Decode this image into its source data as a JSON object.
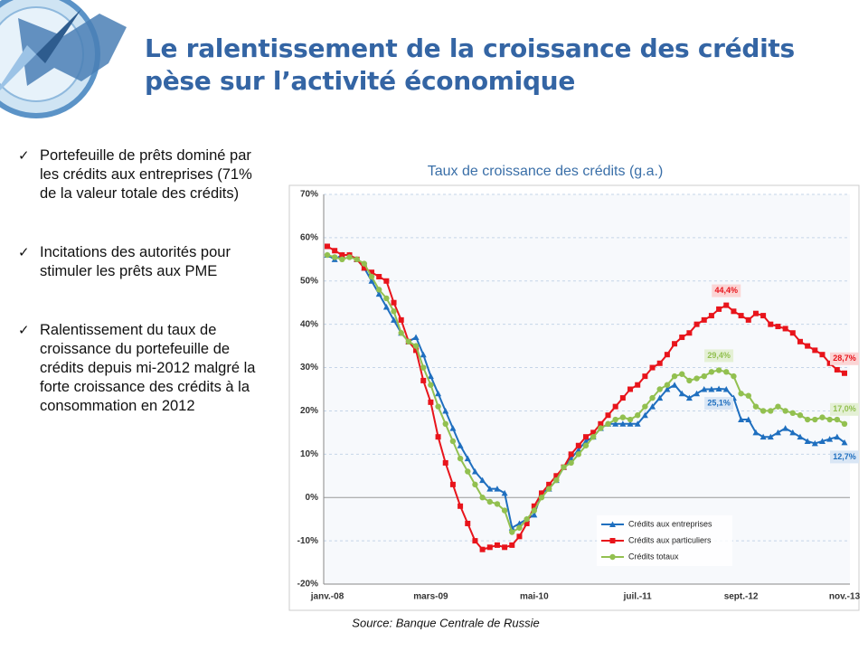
{
  "slide_title": [
    "Le ralentissement de la croissance des crédits",
    "pèse sur l’activité économique"
  ],
  "bullets": [
    "Portefeuille de prêts dominé par les crédits aux entreprises (71% de la valeur totale des crédits)",
    "Incitations des autorités pour stimuler les prêts aux PME",
    "Ralentissement du taux de croissance du portefeuille de crédits depuis mi-2012 malgré la forte croissance des crédits à la consommation en 2012"
  ],
  "chart_data": {
    "type": "line",
    "title": "Taux de croissance des crédits (g.a.)",
    "source": "Source: Banque Centrale de Russie",
    "categories": [
      "janv.-08",
      null,
      null,
      null,
      null,
      null,
      null,
      null,
      null,
      null,
      null,
      null,
      null,
      null,
      "mars-09",
      null,
      null,
      null,
      null,
      null,
      null,
      null,
      null,
      null,
      null,
      null,
      null,
      null,
      "mai-10",
      null,
      null,
      null,
      null,
      null,
      null,
      null,
      null,
      null,
      null,
      null,
      null,
      null,
      "juil.-11",
      null,
      null,
      null,
      null,
      null,
      null,
      null,
      null,
      null,
      null,
      null,
      null,
      null,
      "sept.-12",
      null,
      null,
      null,
      null,
      null,
      null,
      null,
      null,
      null,
      null,
      null,
      null,
      null,
      "nov.-13"
    ],
    "series": [
      {
        "name": "Crédits aux entreprises",
        "color": "#1f6fbf",
        "marker": "triangle",
        "values": [
          56,
          55,
          56,
          56,
          55,
          53,
          50,
          47,
          44,
          41,
          38,
          36,
          37,
          33,
          28,
          24,
          20,
          16,
          12,
          9,
          6,
          4,
          2,
          2,
          1,
          -7,
          -6,
          -5,
          -4,
          1,
          2,
          4,
          7,
          9,
          11,
          13,
          14,
          16,
          17,
          17,
          17,
          17,
          17,
          19,
          21,
          23,
          25,
          26,
          24,
          23,
          24,
          25,
          25,
          25.1,
          25,
          23,
          18,
          18,
          15,
          14,
          14,
          15,
          16,
          15,
          14,
          13,
          12.5,
          13,
          13.5,
          14,
          12.7
        ],
        "value_labels": [
          null,
          null,
          null,
          null,
          null,
          null,
          null,
          null,
          null,
          null,
          null,
          null,
          null,
          null,
          null,
          null,
          null,
          null,
          null,
          null,
          null,
          null,
          null,
          null,
          null,
          null,
          null,
          null,
          null,
          null,
          null,
          null,
          null,
          null,
          null,
          null,
          null,
          null,
          null,
          null,
          null,
          null,
          null,
          null,
          null,
          null,
          null,
          null,
          null,
          null,
          null,
          null,
          null,
          "25,1%",
          null,
          null,
          null,
          null,
          null,
          null,
          null,
          null,
          null,
          null,
          null,
          null,
          null,
          null,
          null,
          null,
          "12,7%"
        ]
      },
      {
        "name": "Crédits aux particuliers",
        "color": "#e8141b",
        "marker": "square",
        "values": [
          58,
          57,
          56,
          56,
          55,
          53,
          52,
          51,
          50,
          45,
          41,
          36,
          34,
          27,
          22,
          14,
          8,
          3,
          -2,
          -6,
          -10,
          -12,
          -11.5,
          -11,
          -11.5,
          -11,
          -9,
          -6,
          -2,
          1,
          3,
          5,
          7,
          10,
          12,
          14,
          15,
          17,
          19,
          21,
          23,
          25,
          26,
          28,
          30,
          31,
          33,
          35.5,
          37,
          38,
          40,
          41,
          42,
          43.5,
          44.4,
          43,
          42,
          41,
          42.5,
          42,
          40,
          39.5,
          39,
          38,
          36,
          35,
          34,
          33,
          31,
          29.5,
          28.7
        ],
        "value_labels": [
          null,
          null,
          null,
          null,
          null,
          null,
          null,
          null,
          null,
          null,
          null,
          null,
          null,
          null,
          null,
          null,
          null,
          null,
          null,
          null,
          null,
          null,
          null,
          null,
          null,
          null,
          null,
          null,
          null,
          null,
          null,
          null,
          null,
          null,
          null,
          null,
          null,
          null,
          null,
          null,
          null,
          null,
          null,
          null,
          null,
          null,
          null,
          null,
          null,
          null,
          null,
          null,
          null,
          null,
          "44,4%",
          null,
          null,
          null,
          null,
          null,
          null,
          null,
          null,
          null,
          null,
          null,
          null,
          null,
          null,
          null,
          "28,7%"
        ]
      },
      {
        "name": "Crédits totaux",
        "color": "#92c050",
        "marker": "circle",
        "values": [
          56,
          55.5,
          55,
          55.5,
          55,
          54,
          51,
          48,
          46,
          43,
          38,
          36,
          35,
          30,
          26,
          21,
          17,
          13,
          9,
          6,
          3,
          0,
          -1,
          -1.5,
          -3,
          -8,
          -7,
          -5,
          -3,
          0,
          2,
          4,
          7,
          8,
          10,
          12,
          14,
          16,
          17,
          18,
          18.5,
          18,
          19,
          21,
          23,
          25,
          26,
          28,
          28.5,
          27,
          27.5,
          28,
          29,
          29.4,
          29,
          28,
          24,
          23.5,
          21,
          20,
          20,
          21,
          20,
          19.5,
          19,
          18,
          18,
          18.5,
          18,
          18,
          17
        ],
        "value_labels": [
          null,
          null,
          null,
          null,
          null,
          null,
          null,
          null,
          null,
          null,
          null,
          null,
          null,
          null,
          null,
          null,
          null,
          null,
          null,
          null,
          null,
          null,
          null,
          null,
          null,
          null,
          null,
          null,
          null,
          null,
          null,
          null,
          null,
          null,
          null,
          null,
          null,
          null,
          null,
          null,
          null,
          null,
          null,
          null,
          null,
          null,
          null,
          null,
          null,
          null,
          null,
          null,
          null,
          "29,4%",
          null,
          null,
          null,
          null,
          null,
          null,
          null,
          null,
          null,
          null,
          null,
          null,
          null,
          null,
          null,
          null,
          "17,0%"
        ]
      }
    ],
    "ylim": [
      -20,
      70
    ],
    "yticks": [
      {
        "value": -20,
        "label": "-20%"
      },
      {
        "value": -10,
        "label": "-10%"
      },
      {
        "value": 0,
        "label": "0%"
      },
      {
        "value": 10,
        "label": "10%"
      },
      {
        "value": 20,
        "label": "20%"
      },
      {
        "value": 30,
        "label": "30%"
      },
      {
        "value": 40,
        "label": "40%"
      },
      {
        "value": 50,
        "label": "50%"
      },
      {
        "value": 60,
        "label": "60%"
      },
      {
        "value": 70,
        "label": "70%"
      }
    ],
    "grid": true,
    "legend": "bottom"
  }
}
